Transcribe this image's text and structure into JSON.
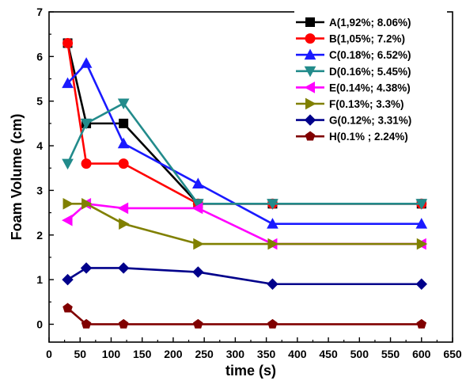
{
  "chart_data": {
    "type": "line",
    "title": "",
    "xlabel": "time (s)",
    "ylabel": "Foam Volume (cm)",
    "xlim": [
      0,
      650
    ],
    "ylim": [
      -0.4,
      7
    ],
    "xticks": [
      0,
      50,
      100,
      150,
      200,
      250,
      300,
      350,
      400,
      450,
      500,
      550,
      600,
      650
    ],
    "yticks": [
      0,
      1,
      2,
      3,
      4,
      5,
      6,
      7
    ],
    "grid": false,
    "legend_position": "top-right",
    "x": [
      30,
      60,
      120,
      240,
      360,
      600
    ],
    "series": [
      {
        "name": "A(1,92%; 8.06%)",
        "color": "#000000",
        "marker": "square",
        "values": [
          6.3,
          4.5,
          4.5,
          2.7,
          2.7,
          2.7
        ]
      },
      {
        "name": "B(1,05%; 7.2%)",
        "color": "#ff0000",
        "marker": "circle",
        "values": [
          6.3,
          3.6,
          3.6,
          2.7,
          2.7,
          2.7
        ]
      },
      {
        "name": "C(0.18%; 6.52%)",
        "color": "#1a1aff",
        "marker": "triangle-up",
        "values": [
          5.4,
          5.85,
          4.05,
          3.15,
          2.25,
          2.25
        ]
      },
      {
        "name": "D(0.16%; 5.45%)",
        "color": "#228b8b",
        "marker": "triangle-down",
        "values": [
          3.6,
          4.5,
          4.95,
          2.7,
          2.7,
          2.7
        ]
      },
      {
        "name": "E(0.14%; 4.38%)",
        "color": "#ff00ff",
        "marker": "triangle-left",
        "values": [
          2.33,
          2.7,
          2.6,
          2.6,
          1.8,
          1.8
        ]
      },
      {
        "name": "F(0.13%; 3.3%)",
        "color": "#808000",
        "marker": "triangle-right",
        "values": [
          2.7,
          2.7,
          2.25,
          1.8,
          1.8,
          1.8
        ]
      },
      {
        "name": "G(0.12%; 3.31%)",
        "color": "#00008b",
        "marker": "diamond",
        "values": [
          1.0,
          1.26,
          1.26,
          1.17,
          0.9,
          0.9
        ]
      },
      {
        "name": "H(0.1% ; 2.24%)",
        "color": "#800000",
        "marker": "pentagon",
        "values": [
          0.36,
          0.0,
          0.0,
          0.0,
          0.0,
          0.0
        ]
      }
    ]
  }
}
